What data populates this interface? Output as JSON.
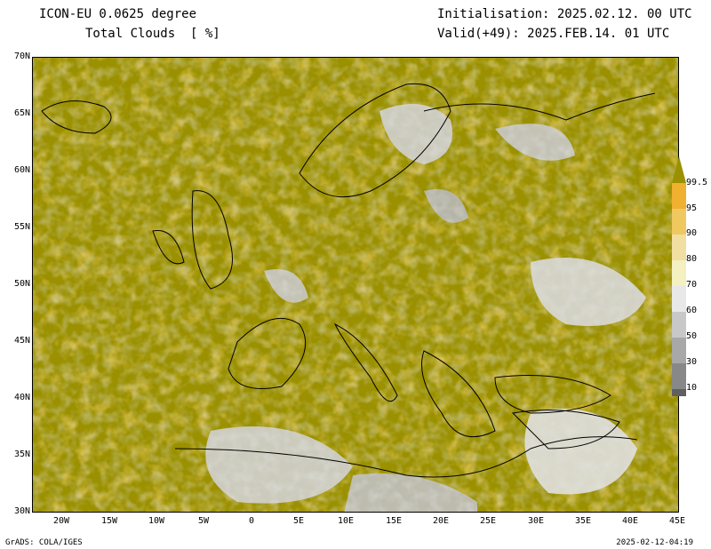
{
  "header": {
    "model": "ICON-EU 0.0625 degree",
    "field": "Total Clouds  [ %]",
    "initialisation": "Initialisation: 2025.02.12. 00 UTC",
    "valid": "Valid(+49): 2025.FEB.14. 01 UTC"
  },
  "axes": {
    "lat_labels": [
      "70N",
      "65N",
      "60N",
      "55N",
      "50N",
      "45N",
      "40N",
      "35N",
      "30N"
    ],
    "lon_labels": [
      "20W",
      "15W",
      "10W",
      "5W",
      "0",
      "5E",
      "10E",
      "15E",
      "20E",
      "25E",
      "30E",
      "35E",
      "40E",
      "45E"
    ],
    "lat_range": [
      30,
      70
    ],
    "lon_range": [
      -23,
      45
    ]
  },
  "colorbar": {
    "unit": "%",
    "levels": [
      "99.5",
      "95",
      "90",
      "80",
      "70",
      "60",
      "50",
      "30",
      "10"
    ],
    "colors": [
      "#9a9000",
      "#f0b030",
      "#f0c860",
      "#f0dfa0",
      "#f4f0c0",
      "#e8e8e8",
      "#c8c8c8",
      "#a8a8a8",
      "#888888",
      "#606060"
    ]
  },
  "footer": {
    "left": "GrADS: COLA/IGES",
    "right": "2025-02-12-04:19"
  }
}
